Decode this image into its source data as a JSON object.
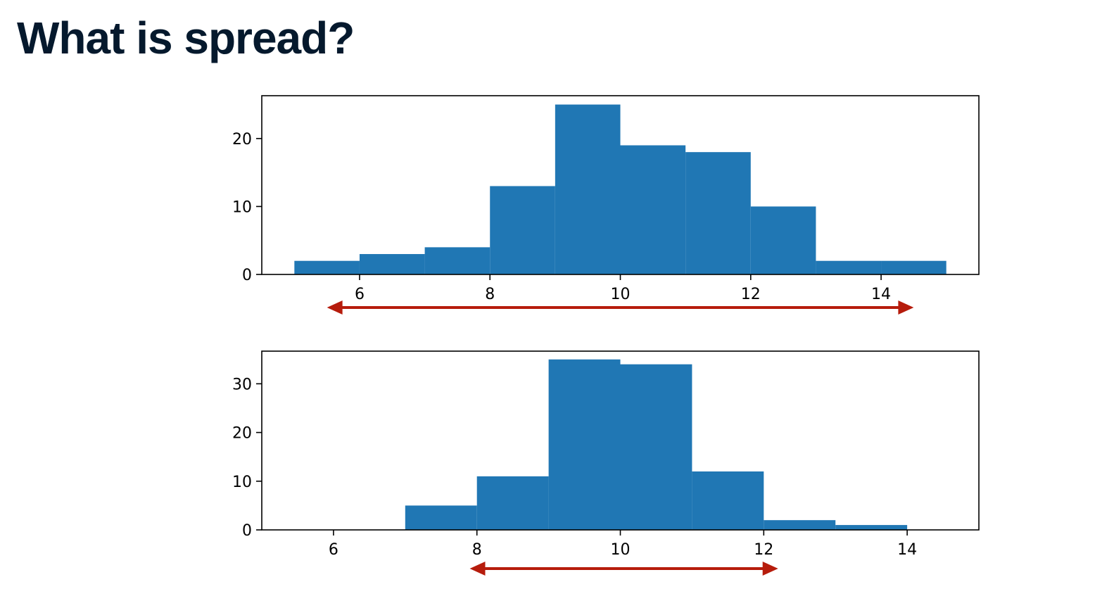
{
  "slide": {
    "title": "What is spread?"
  },
  "colors": {
    "bar": "#2077b4",
    "arrow": "#b61c0c",
    "axis": "#000000",
    "title": "#05192d"
  },
  "chart_data": [
    {
      "type": "bar",
      "histogram": true,
      "bin_edges": [
        5,
        6,
        7,
        8,
        9,
        10,
        11,
        12,
        13,
        14,
        15
      ],
      "values": [
        2,
        3,
        4,
        13,
        25,
        19,
        18,
        10,
        2,
        2
      ],
      "xlim": [
        4.5,
        15.5
      ],
      "ylim": [
        0,
        26.3
      ],
      "xticks": [
        6,
        8,
        10,
        12,
        14
      ],
      "yticks": [
        0,
        10,
        20
      ],
      "title": "",
      "xlabel": "",
      "ylabel": "",
      "grid": false,
      "annotation": {
        "type": "double-headed-arrow",
        "from": 5.5,
        "to": 14.5,
        "color": "#b61c0c"
      }
    },
    {
      "type": "bar",
      "histogram": true,
      "bin_edges": [
        7,
        8,
        9,
        10,
        11,
        12,
        13,
        14
      ],
      "values": [
        5,
        11,
        35,
        34,
        12,
        2,
        1
      ],
      "xlim": [
        5.0,
        15.0
      ],
      "ylim": [
        0,
        36.7
      ],
      "xticks": [
        6,
        8,
        10,
        12,
        14
      ],
      "yticks": [
        0,
        10,
        20,
        30
      ],
      "title": "",
      "xlabel": "",
      "ylabel": "",
      "grid": false,
      "annotation": {
        "type": "double-headed-arrow",
        "from": 7.9,
        "to": 12.2,
        "color": "#b61c0c"
      }
    }
  ]
}
